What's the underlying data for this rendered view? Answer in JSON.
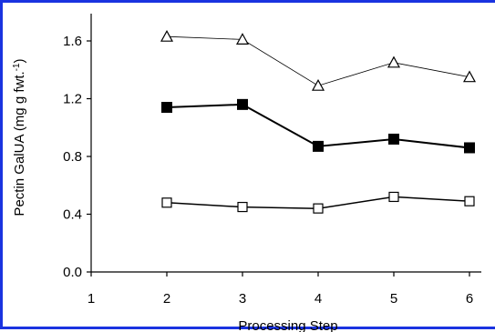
{
  "chart_data": {
    "type": "line",
    "title": "",
    "xlabel": "Processing Step",
    "ylabel": "Pectin GalUA (mg g fwt.",
    "ylabel_superscript": "-1",
    "ylabel_close": ")",
    "xlim": [
      1,
      6
    ],
    "ylim": [
      0.0,
      1.6
    ],
    "x_ticks": [
      1,
      2,
      3,
      4,
      5,
      6
    ],
    "x_tick_labels": [
      "1",
      "2",
      "3",
      "4",
      "5",
      "6"
    ],
    "y_ticks": [
      0.0,
      0.4,
      0.8,
      1.2,
      1.6
    ],
    "y_tick_labels": [
      "0.0",
      "0.4",
      "0.8",
      "1.2",
      "1.6"
    ],
    "grid": false,
    "legend": "none",
    "series": [
      {
        "marker": "open-triangle",
        "line_weight": "thin",
        "color": "#000000",
        "x": [
          2,
          3,
          4,
          5,
          6
        ],
        "y": [
          1.63,
          1.61,
          1.29,
          1.45,
          1.35
        ]
      },
      {
        "marker": "filled-square",
        "line_weight": "thick",
        "color": "#000000",
        "x": [
          2,
          3,
          4,
          5,
          6
        ],
        "y": [
          1.14,
          1.16,
          0.87,
          0.92,
          0.86
        ]
      },
      {
        "marker": "open-square",
        "line_weight": "medium",
        "color": "#000000",
        "x": [
          2,
          3,
          4,
          5,
          6
        ],
        "y": [
          0.48,
          0.45,
          0.44,
          0.52,
          0.49
        ]
      }
    ]
  },
  "colors": {
    "frame_border": "#1a33e0",
    "ink": "#000000",
    "background": "#ffffff"
  }
}
